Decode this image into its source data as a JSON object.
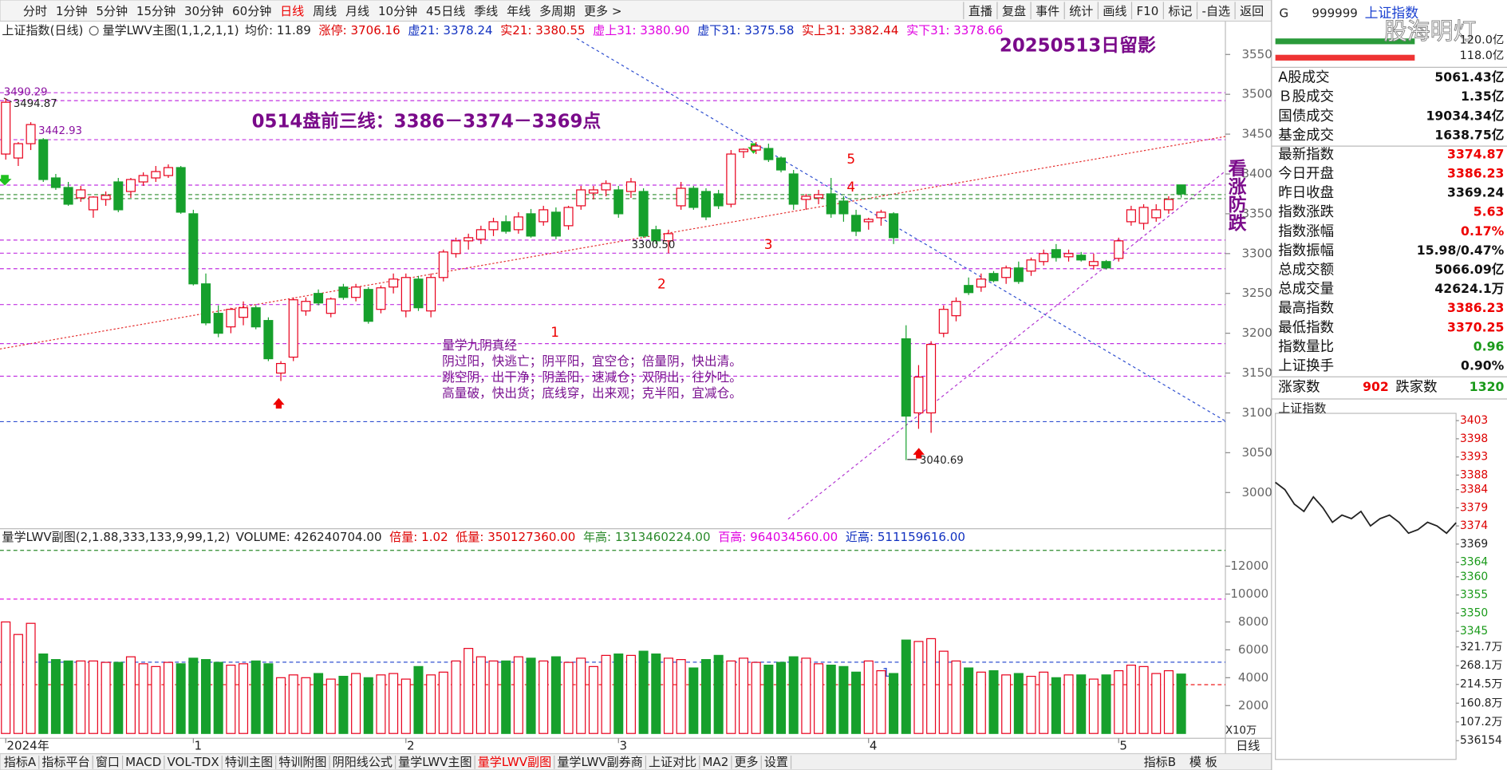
{
  "toolbar": {
    "left": [
      "分时",
      "1分钟",
      "5分钟",
      "15分钟",
      "30分钟",
      "60分钟",
      "日线",
      "周线",
      "月线",
      "10分钟",
      "45日线",
      "季线",
      "年线",
      "多周期",
      "更多 >"
    ],
    "active_index": 6,
    "right": [
      "直播",
      "复盘",
      "事件",
      "统计",
      "画线",
      "F10",
      "标记",
      "-自选",
      "返回"
    ]
  },
  "main_header": {
    "indicator": "量学LWV主图(1,1,2,1,1)",
    "items": [
      {
        "text": "均价: 11.89",
        "color": "#222"
      },
      {
        "text": "涨停: 3706.16",
        "color": "#d00"
      },
      {
        "text": "虚21: 3378.24",
        "color": "#1030c0"
      },
      {
        "text": "实21: 3380.55",
        "color": "#d00"
      },
      {
        "text": "虚上31: 3380.90",
        "color": "#e000e0"
      },
      {
        "text": "虚下31: 3375.58",
        "color": "#1030c0"
      },
      {
        "text": "实上31: 3382.44",
        "color": "#d00"
      },
      {
        "text": "实下31: 3378.66",
        "color": "#e000e0"
      }
    ]
  },
  "volume_header": {
    "items": [
      {
        "text": "VOLUME: 426240704.00",
        "color": "#222"
      },
      {
        "text": "倍量: 1.02",
        "color": "#d00"
      },
      {
        "text": "低量: 350127360.00",
        "color": "#d00"
      },
      {
        "text": "年高: 1313460224.00",
        "color": "#2a8a2a"
      },
      {
        "text": "百高: 964034560.00",
        "color": "#e000e0"
      },
      {
        "text": "近高: 511159616.00",
        "color": "#1030c0"
      }
    ]
  },
  "annotations": {
    "date_stamp": "20250513日留影",
    "three_lines": "0514盘前三线：3386－3374－3369点",
    "vertical": "看涨防跌",
    "waves": [
      "1",
      "2",
      "3",
      "4",
      "5"
    ],
    "poem": [
      "量学九阴真经",
      "阴过阳，快逃亡；阴平阳，宜空仓；倍量阴，快出清。",
      "跳空阴，出干净；阴盖阳，速减仓；双阴出，往外吐。",
      "高量破，快出货；底线穿，出来观；克半阳，宜减仓。"
    ]
  },
  "right_panel": {
    "badge": "G",
    "code": "999999",
    "name": "上证指数",
    "watermark": "股海明灯",
    "amount_top": "120.0亿",
    "amount_bottom": "118.0亿",
    "rows": [
      {
        "label": "A股成交",
        "value": "5061.43亿",
        "color": "#111"
      },
      {
        "label": "Ｂ股成交",
        "value": "1.35亿",
        "color": "#111"
      },
      {
        "label": "国债成交",
        "value": "19034.34亿",
        "color": "#111"
      },
      {
        "label": "基金成交",
        "value": "1638.75亿",
        "color": "#111"
      },
      {
        "label": "最新指数",
        "value": "3374.87",
        "color": "#e00"
      },
      {
        "label": "今日开盘",
        "value": "3386.23",
        "color": "#e00"
      },
      {
        "label": "昨日收盘",
        "value": "3369.24",
        "color": "#111"
      },
      {
        "label": "指数涨跌",
        "value": "5.63",
        "color": "#e00"
      },
      {
        "label": "指数涨幅",
        "value": "0.17%",
        "color": "#e00"
      },
      {
        "label": "指数振幅",
        "value": "15.98/0.47%",
        "color": "#111"
      },
      {
        "label": "总成交额",
        "value": "5066.09亿",
        "color": "#111"
      },
      {
        "label": "总成交量",
        "value": "42624.1万",
        "color": "#111"
      },
      {
        "label": "最高指数",
        "value": "3386.23",
        "color": "#e00"
      },
      {
        "label": "最低指数",
        "value": "3370.25",
        "color": "#e00"
      },
      {
        "label": "指数量比",
        "value": "0.96",
        "color": "#1a9a1a"
      },
      {
        "label": "上证换手",
        "value": "0.90%",
        "color": "#111"
      }
    ],
    "breadth": {
      "up_label": "涨家数",
      "up": "902",
      "down_label": "跌家数",
      "down": "1320"
    }
  },
  "bottom_tabs": {
    "items": [
      "指标A",
      "指标平台",
      "窗口",
      "MACD",
      "VOL-TDX",
      "特训主图",
      "特训附图",
      "阴阳线公式",
      "量学LWV主图",
      "量学LWV副图",
      "量学LWV副券商",
      "上证对比",
      "MA2",
      "更多",
      "设置"
    ],
    "active_index": 9,
    "right": [
      "指标B",
      "模 板"
    ]
  },
  "period_label": "日线",
  "chart_data": [
    {
      "type": "candlestick",
      "title": "上证指数(日线)",
      "categories": [
        "2024年",
        null,
        null,
        null,
        null,
        null,
        null,
        null,
        null,
        null,
        null,
        null,
        null,
        null,
        null,
        "1",
        null,
        null,
        null,
        null,
        null,
        null,
        null,
        null,
        null,
        null,
        null,
        null,
        null,
        null,
        null,
        null,
        "2",
        null,
        null,
        null,
        null,
        null,
        null,
        null,
        null,
        null,
        null,
        null,
        null,
        null,
        null,
        null,
        null,
        "3",
        null,
        null,
        null,
        null,
        null,
        null,
        null,
        null,
        null,
        null,
        null,
        null,
        null,
        null,
        null,
        null,
        null,
        null,
        null,
        "4",
        null,
        null,
        null,
        null,
        null,
        null,
        null,
        null,
        null,
        null,
        null,
        null,
        null,
        null,
        null,
        null,
        null,
        null,
        null,
        "5",
        null,
        null,
        null,
        null,
        null
      ],
      "open": [
        3425,
        3420,
        3438,
        3443,
        3395,
        3383,
        3370,
        3355,
        3368,
        3390,
        3378,
        3390,
        3395,
        3398,
        3408,
        3350,
        3262,
        3225,
        3208,
        3220,
        3232,
        3216,
        3150,
        3170,
        3228,
        3250,
        3225,
        3258,
        3245,
        3255,
        3230,
        3258,
        3228,
        3268,
        3228,
        3270,
        3300,
        3316,
        3318,
        3330,
        3340,
        3330,
        3350,
        3340,
        3352,
        3335,
        3360,
        3376,
        3380,
        3380,
        3378,
        3378,
        3330,
        3316,
        3360,
        3382,
        3378,
        3375,
        3362,
        3428,
        3430,
        3432,
        3420,
        3400,
        3368,
        3370,
        3375,
        3366,
        3348,
        3340,
        3345,
        3350,
        3193,
        3100,
        3100,
        3200,
        3222,
        3260,
        3258,
        3275,
        3270,
        3282,
        3278,
        3290,
        3305,
        3296,
        3298,
        3285,
        3290,
        3294,
        3340,
        3338,
        3345,
        3355,
        3386.23
      ],
      "high": [
        3494.87,
        3440,
        3465,
        3445,
        3400,
        3390,
        3385,
        3372,
        3378,
        3395,
        3395,
        3402,
        3410,
        3412,
        3410,
        3355,
        3275,
        3235,
        3232,
        3240,
        3235,
        3220,
        3165,
        3245,
        3245,
        3255,
        3245,
        3262,
        3262,
        3258,
        3260,
        3275,
        3275,
        3272,
        3275,
        3305,
        3320,
        3325,
        3335,
        3345,
        3348,
        3352,
        3356,
        3360,
        3358,
        3360,
        3385,
        3385,
        3392,
        3385,
        3395,
        3382,
        3335,
        3330,
        3390,
        3385,
        3382,
        3380,
        3430,
        3432,
        3440,
        3438,
        3422,
        3405,
        3375,
        3380,
        3395,
        3372,
        3355,
        3345,
        3355,
        3352,
        3210,
        3160,
        3190,
        3235,
        3245,
        3270,
        3275,
        3278,
        3285,
        3290,
        3295,
        3305,
        3312,
        3305,
        3302,
        3300,
        3292,
        3320,
        3360,
        3362,
        3362,
        3372,
        3386.23
      ],
      "low": [
        3418,
        3410,
        3430,
        3390,
        3380,
        3360,
        3365,
        3345,
        3360,
        3352,
        3370,
        3385,
        3390,
        3395,
        3350,
        3260,
        3210,
        3195,
        3200,
        3210,
        3205,
        3165,
        3140,
        3165,
        3222,
        3235,
        3220,
        3242,
        3240,
        3212,
        3225,
        3250,
        3220,
        3228,
        3220,
        3265,
        3295,
        3305,
        3312,
        3322,
        3325,
        3325,
        3320,
        3335,
        3318,
        3330,
        3355,
        3368,
        3372,
        3345,
        3370,
        3320,
        3312,
        3300.5,
        3355,
        3355,
        3342,
        3356,
        3358,
        3420,
        3425,
        3415,
        3402,
        3355,
        3355,
        3362,
        3345,
        3340,
        3322,
        3330,
        3335,
        3312,
        3040.69,
        3080,
        3075,
        3195,
        3215,
        3248,
        3252,
        3264,
        3262,
        3262,
        3272,
        3285,
        3290,
        3290,
        3290,
        3280,
        3280,
        3290,
        3335,
        3330,
        3340,
        3350,
        3370.25
      ],
      "close": [
        3490,
        3438,
        3462,
        3393,
        3383,
        3362,
        3380,
        3371,
        3373,
        3355,
        3393,
        3398,
        3403,
        3408,
        3352,
        3262,
        3213,
        3200,
        3230,
        3232,
        3208,
        3168,
        3162,
        3242,
        3240,
        3238,
        3243,
        3245,
        3258,
        3215,
        3257,
        3268,
        3270,
        3232,
        3270,
        3302,
        3316,
        3320,
        3330,
        3340,
        3328,
        3346,
        3322,
        3355,
        3322,
        3358,
        3380,
        3380,
        3388,
        3350,
        3390,
        3322,
        3316,
        3325,
        3382,
        3358,
        3346,
        3360,
        3425,
        3431,
        3435,
        3418,
        3405,
        3362,
        3372,
        3374,
        3350,
        3350,
        3328,
        3343,
        3352,
        3320,
        3096,
        3145,
        3186,
        3230,
        3240,
        3251,
        3268,
        3266,
        3282,
        3265,
        3292,
        3300,
        3295,
        3300,
        3292,
        3290,
        3282,
        3316,
        3355,
        3358,
        3355,
        3368,
        3374.87
      ],
      "up_color": "#e8001c",
      "down_color": "#16a02c",
      "ylim": [
        2957,
        3587
      ],
      "yticks": [
        3000,
        3050,
        3100,
        3150,
        3200,
        3250,
        3300,
        3350,
        3400,
        3450,
        3500,
        3550
      ],
      "levels": [
        3502,
        3492,
        3443,
        3386,
        3374,
        3369,
        3317,
        3300.5,
        3281,
        3236,
        3187,
        3146,
        3089
      ],
      "level_colors": [
        "#c030e0",
        "#c030e0",
        "#c030e0",
        "#c030e0",
        "#2a8a2a",
        "#2a8a2a",
        "#c030e0",
        "#c030e0",
        "#c030e0",
        "#c030e0",
        "#c030e0",
        "#c030e0",
        "#3050d0"
      ],
      "price_labels": [
        3490.29,
        3494.87,
        3442.93,
        {
          "value": 3300.5,
          "label": "3300.50"
        },
        3040.69
      ]
    },
    {
      "type": "bar",
      "title": "量学LWV副图(2,1.88,333,133,9,99,1,2)",
      "unit_label": "X10万",
      "marker": "1",
      "values": [
        8000,
        7100,
        7900,
        5700,
        5300,
        5200,
        5200,
        5200,
        5100,
        5100,
        5500,
        5000,
        4800,
        5100,
        5000,
        5400,
        5300,
        5100,
        4900,
        5000,
        5200,
        5000,
        4000,
        4200,
        4000,
        4300,
        3900,
        4100,
        4300,
        4000,
        4200,
        4300,
        3900,
        4800,
        4200,
        4400,
        5200,
        6100,
        5500,
        5200,
        5200,
        5500,
        5400,
        5200,
        5500,
        5100,
        5400,
        4800,
        5600,
        5700,
        5600,
        5900,
        5700,
        5400,
        5300,
        4700,
        5300,
        5600,
        5200,
        5400,
        5100,
        4900,
        5100,
        5500,
        5400,
        5000,
        4900,
        4800,
        4400,
        5200,
        4500,
        4300,
        6700,
        6600,
        6800,
        5900,
        5200,
        4700,
        4400,
        4500,
        4200,
        4300,
        4100,
        4400,
        4000,
        4200,
        4200,
        3900,
        4200,
        4500,
        4900,
        4800,
        4300,
        4500,
        4262.4
      ],
      "ylim": [
        0,
        14550
      ],
      "yticks": [
        2000,
        4000,
        6000,
        8000,
        10000,
        12000
      ],
      "levels": [
        13134.6,
        9640.3,
        5111.6,
        3501.3
      ],
      "level_colors": [
        "#2a8a2a",
        "#e000e0",
        "#3050d0",
        "#e00"
      ]
    },
    {
      "type": "line",
      "title": "上证指数",
      "color": "#222",
      "values": [
        3386,
        3384,
        3380,
        3378,
        3382,
        3379,
        3375,
        3377,
        3376,
        3378,
        3374,
        3376,
        3377,
        3375,
        3372,
        3373,
        3375,
        3374,
        3372,
        3374.87
      ],
      "ylim": [
        3342,
        3405
      ],
      "yticks": [
        3403,
        3398,
        3393,
        3388,
        3384,
        3379,
        3374,
        3369,
        3364,
        3360,
        3355,
        3350,
        3345
      ],
      "y2lim": [
        0,
        3354000
      ],
      "y2ticks": [
        {
          "value": 3217000,
          "label": "321.7万"
        },
        {
          "value": 2681000,
          "label": "268.1万"
        },
        {
          "value": 2145000,
          "label": "214.5万"
        },
        {
          "value": 1608000,
          "label": "160.8万"
        },
        {
          "value": 1072000,
          "label": "107.2万"
        },
        536154
      ]
    }
  ]
}
